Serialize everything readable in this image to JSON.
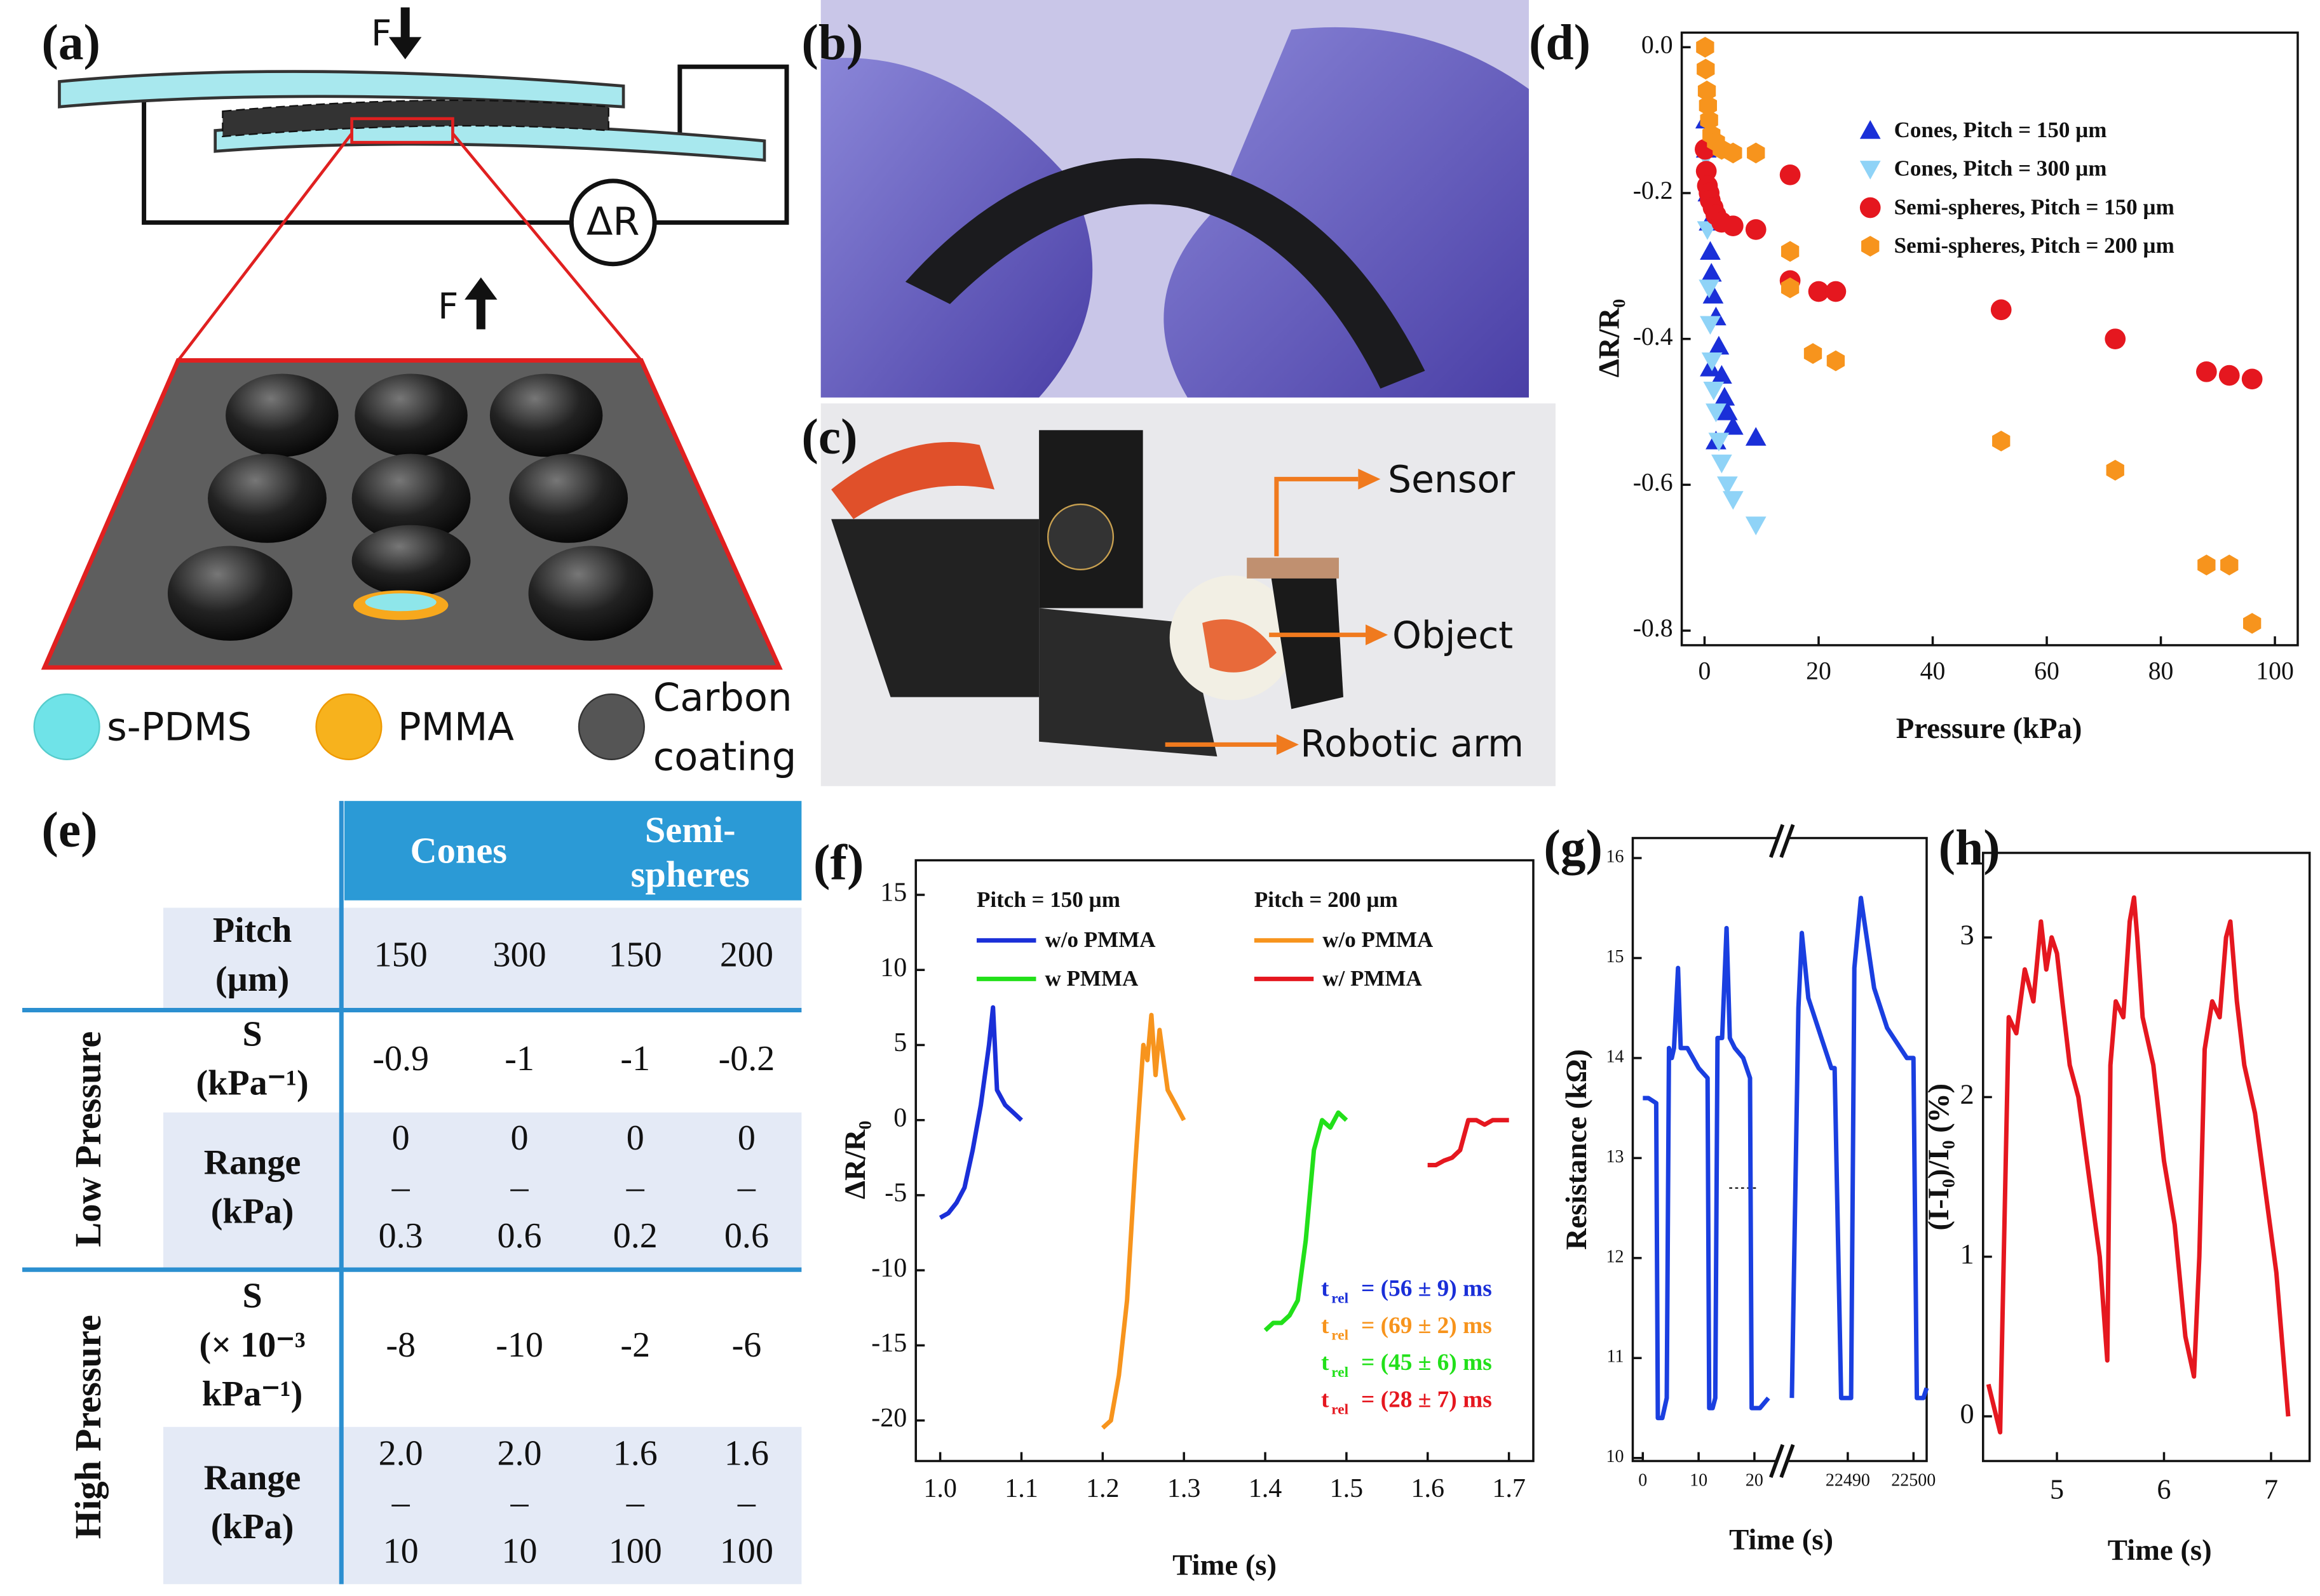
{
  "panel_labels": [
    "(a)",
    "(b)",
    "(c)",
    "(d)",
    "(e)",
    "(f)",
    "(g)",
    "(h)"
  ],
  "schematic": {
    "force_top": "F",
    "resistance": "ΔR",
    "force_bottom": "F",
    "legend": [
      "s-PDMS",
      "PMMA",
      [
        "Carbon",
        "coating"
      ]
    ]
  },
  "photo": {
    "labels": [
      "Sensor",
      "Object",
      "Robotic arm"
    ]
  },
  "table": {
    "header": [
      "Cones",
      [
        "Semi-",
        "spheres"
      ]
    ],
    "groups": [
      "Low Pressure",
      "High Pressure"
    ],
    "rows": [
      {
        "label": [
          "Pitch",
          "(µm)"
        ],
        "cells": [
          "150",
          "300",
          "150",
          "200"
        ]
      },
      {
        "label": [
          "S",
          "(kPa⁻¹)"
        ],
        "cells": [
          "-0.9",
          "-1",
          "-1",
          "-0.2"
        ]
      },
      {
        "label": [
          "Range",
          "(kPa)"
        ],
        "cells": [
          [
            "0",
            "–",
            "0.3"
          ],
          [
            "0",
            "–",
            "0.6"
          ],
          [
            "0",
            "–",
            "0.2"
          ],
          [
            "0",
            "–",
            "0.6"
          ]
        ]
      },
      {
        "label": [
          "S",
          "(× 10⁻³",
          "kPa⁻¹)"
        ],
        "cells": [
          "-8",
          "-10",
          "-2",
          "-6"
        ]
      },
      {
        "label": [
          "Range",
          "(kPa)"
        ],
        "cells": [
          [
            "2.0",
            "–",
            "10"
          ],
          [
            "2.0",
            "–",
            "10"
          ],
          [
            "1.6",
            "–",
            "100"
          ],
          [
            "1.6",
            "–",
            "100"
          ]
        ]
      }
    ]
  },
  "chart_data": [
    {
      "type": "scatter",
      "xlabel": "Pressure (kPa)",
      "ylabel": "ΔR/R₀",
      "xlim": [
        -4,
        104
      ],
      "ylim": [
        -0.82,
        0.02
      ],
      "xticks": [
        0,
        20,
        40,
        60,
        80,
        100
      ],
      "yticks": [
        {
          "value": 0,
          "label": "0.0"
        },
        -0.2,
        -0.4,
        -0.6,
        -0.8
      ],
      "legend": "upper right",
      "series": [
        {
          "name": "Cones, Pitch = 150 µm",
          "color": "#1a2fd8",
          "marker": "triangle",
          "x": [
            0.2,
            0.3,
            0.5,
            0.6,
            0.8,
            1,
            1.2,
            1.5,
            2,
            2.5,
            3,
            3.5,
            4,
            5,
            9,
            1,
            2
          ],
          "values": [
            -0.1,
            -0.14,
            -0.18,
            -0.2,
            -0.24,
            -0.28,
            -0.31,
            -0.34,
            -0.37,
            -0.41,
            -0.45,
            -0.48,
            -0.5,
            -0.52,
            -0.535,
            -0.44,
            -0.54
          ]
        },
        {
          "name": "Cones, Pitch = 300 µm",
          "color": "#8fd3f7",
          "marker": "triangle-down",
          "x": [
            0.2,
            0.5,
            0.8,
            1,
            1.3,
            1.6,
            2,
            2.5,
            3,
            4,
            5,
            9
          ],
          "values": [
            -0.15,
            -0.25,
            -0.33,
            -0.38,
            -0.43,
            -0.47,
            -0.5,
            -0.54,
            -0.57,
            -0.6,
            -0.62,
            -0.655
          ]
        },
        {
          "name": "Semi-spheres, Pitch = 150 µm",
          "color": "#e5171f",
          "marker": "circle",
          "x": [
            0.1,
            0.3,
            0.5,
            0.8,
            1,
            1.5,
            2,
            3,
            5,
            9,
            15,
            15,
            20,
            23,
            52,
            72,
            88,
            92,
            96
          ],
          "values": [
            -0.14,
            -0.17,
            -0.19,
            -0.2,
            -0.21,
            -0.22,
            -0.23,
            -0.24,
            -0.245,
            -0.25,
            -0.175,
            -0.32,
            -0.335,
            -0.335,
            -0.36,
            -0.4,
            -0.445,
            -0.45,
            -0.455
          ]
        },
        {
          "name": "Semi-spheres, Pitch = 200 µm",
          "color": "#f7941d",
          "marker": "hexagon",
          "x": [
            0.1,
            0.2,
            0.4,
            0.6,
            0.8,
            1.2,
            2,
            3,
            5,
            9,
            15,
            15,
            19,
            23,
            52,
            72,
            88,
            92,
            96
          ],
          "values": [
            0,
            -0.03,
            -0.06,
            -0.08,
            -0.1,
            -0.12,
            -0.13,
            -0.14,
            -0.145,
            -0.145,
            -0.28,
            -0.33,
            -0.42,
            -0.43,
            -0.54,
            -0.58,
            -0.71,
            -0.71,
            -0.79
          ]
        }
      ]
    },
    {
      "type": "line",
      "xlabel": "Time (s)",
      "ylabel": "ΔR/R₀",
      "xlim": [
        0.97,
        1.73
      ],
      "ylim": [
        -22.7,
        17.3
      ],
      "xticks": [
        {
          "value": 1,
          "label": "1.0"
        },
        1.1,
        1.2,
        1.3,
        1.4,
        1.5,
        1.6,
        1.7
      ],
      "yticks": [
        -20,
        -15,
        -10,
        -5,
        0,
        5,
        10,
        15
      ],
      "legend_titles": [
        "Pitch = 150 µm",
        "Pitch = 200 µm"
      ],
      "series": [
        {
          "name": "w/o PMMA",
          "color": "#1a2fd8",
          "x": [
            1.0,
            1.01,
            1.02,
            1.03,
            1.04,
            1.05,
            1.06,
            1.065,
            1.07,
            1.08,
            1.09,
            1.1
          ],
          "values": [
            -6.5,
            -6.2,
            -5.5,
            -4.5,
            -2,
            1,
            5,
            7.5,
            2,
            1,
            0.5,
            0
          ]
        },
        {
          "name": "w PMMA",
          "color": "#22e01a",
          "x": [
            1.4,
            1.41,
            1.42,
            1.43,
            1.44,
            1.45,
            1.46,
            1.47,
            1.48,
            1.49,
            1.5
          ],
          "values": [
            -14,
            -13.5,
            -13.5,
            -13,
            -12,
            -8,
            -2,
            0,
            -0.5,
            0.5,
            0
          ]
        },
        {
          "name": "w/o PMMA",
          "color": "#f7941d",
          "x": [
            1.2,
            1.21,
            1.22,
            1.23,
            1.24,
            1.25,
            1.255,
            1.26,
            1.265,
            1.27,
            1.28,
            1.29,
            1.3
          ],
          "values": [
            -20.5,
            -20,
            -17,
            -12,
            -3,
            5,
            4,
            7,
            3,
            6,
            2,
            1,
            0
          ]
        },
        {
          "name": "w/ PMMA",
          "color": "#e5171f",
          "x": [
            1.6,
            1.61,
            1.62,
            1.63,
            1.64,
            1.65,
            1.66,
            1.67,
            1.68,
            1.69,
            1.7
          ],
          "values": [
            -3,
            -3,
            -2.7,
            -2.5,
            -2,
            0,
            0,
            -0.3,
            0,
            0,
            0
          ]
        }
      ],
      "annotations": [
        {
          "symbol": "t",
          "subscript": "rel",
          "text": "= (56 ± 9) ms",
          "color": "#1a2fd8"
        },
        {
          "symbol": "t",
          "subscript": "rel",
          "text": "= (69 ± 2) ms",
          "color": "#f7941d"
        },
        {
          "symbol": "t",
          "subscript": "rel",
          "text": "= (45 ± 6) ms",
          "color": "#22e01a"
        },
        {
          "symbol": "t",
          "subscript": "rel",
          "text": "= (28 ± 7) ms",
          "color": "#e5171f"
        }
      ]
    },
    {
      "type": "line",
      "xlabel": "Time (s)",
      "ylabel": "Resistance (kΩ)",
      "xlim": [
        [
          -1.8,
          24
        ],
        [
          22481,
          22502
        ]
      ],
      "ylim": [
        9.97,
        16.2
      ],
      "xticks": [
        [
          0,
          10,
          20
        ],
        [
          22490,
          22500
        ]
      ],
      "yticks": [
        10,
        11,
        12,
        13,
        14,
        15,
        16
      ],
      "series": [
        {
          "color": "#1a3fe0",
          "x": [
            0,
            1,
            2.4,
            2.7,
            3.5,
            4.3,
            4.7,
            5.2,
            5.6,
            6.3,
            6.8,
            8,
            10,
            11.6,
            11.9,
            12.5,
            13,
            13.4,
            14.2,
            15,
            15.6,
            16.5,
            18,
            19.2,
            19.5,
            21,
            22.5,
            null,
            22481.5,
            22482.5,
            22483,
            22484,
            22486,
            22487.5,
            22488,
            22489,
            22490.5,
            22491,
            22492,
            22494,
            22496,
            22498,
            22499,
            22500,
            22500.5,
            22501.5,
            22502
          ],
          "values": [
            13.6,
            13.6,
            13.55,
            10.4,
            10.4,
            10.6,
            14.1,
            14.0,
            14.1,
            14.9,
            14.1,
            14.1,
            13.9,
            13.8,
            10.5,
            10.5,
            10.6,
            14.2,
            14.2,
            15.3,
            14.2,
            14.1,
            14.0,
            13.8,
            10.5,
            10.5,
            10.6,
            null,
            10.6,
            14.5,
            15.25,
            14.6,
            14.2,
            13.9,
            13.9,
            10.6,
            10.6,
            14.9,
            15.6,
            14.7,
            14.3,
            14.1,
            14.0,
            14.0,
            10.6,
            10.6,
            10.7
          ]
        }
      ]
    },
    {
      "type": "line",
      "xlabel": "Time (s)",
      "ylabel": "(I-I₀)/I₀ (%)",
      "xlim": [
        4.31,
        7.36
      ],
      "ylim": [
        -0.28,
        3.53
      ],
      "xticks": [
        5,
        6,
        7
      ],
      "yticks": [
        0,
        1,
        2,
        3
      ],
      "series": [
        {
          "color": "#e5171f",
          "x": [
            4.36,
            4.47,
            4.55,
            4.62,
            4.7,
            4.78,
            4.85,
            4.9,
            4.95,
            5.0,
            5.05,
            5.12,
            5.2,
            5.3,
            5.4,
            5.47,
            5.5,
            5.55,
            5.62,
            5.68,
            5.72,
            5.75,
            5.8,
            5.9,
            6.0,
            6.1,
            6.2,
            6.28,
            6.33,
            6.38,
            6.45,
            6.52,
            6.58,
            6.62,
            6.68,
            6.75,
            6.85,
            6.95,
            7.05,
            7.16
          ],
          "values": [
            0.2,
            -0.1,
            2.5,
            2.4,
            2.8,
            2.6,
            3.1,
            2.8,
            3.0,
            2.9,
            2.6,
            2.2,
            2.0,
            1.5,
            1.0,
            0.35,
            2.2,
            2.6,
            2.5,
            3.1,
            3.25,
            3.0,
            2.5,
            2.2,
            1.6,
            1.2,
            0.5,
            0.25,
            1.0,
            2.3,
            2.6,
            2.5,
            3.0,
            3.1,
            2.6,
            2.2,
            1.9,
            1.4,
            0.9,
            0.0
          ]
        }
      ]
    }
  ]
}
